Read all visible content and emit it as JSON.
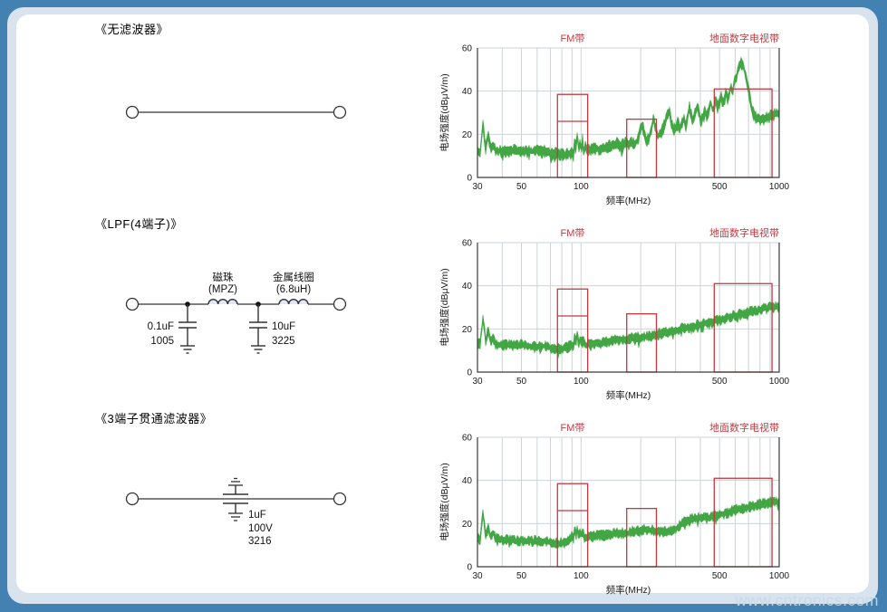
{
  "page": {
    "watermark": "www.cntronics.com",
    "colors": {
      "background_blue": "#4281b1",
      "frame_light": "#d8e3ee",
      "card_white": "#ffffff",
      "trace_green": "#41a643",
      "band_red": "#c23a40",
      "grid_gray": "#cdd3d8",
      "axis_dark": "#3b3b3b",
      "inductor_highlight": "#e2e7f5"
    }
  },
  "sections": [
    {
      "title": "《无滤波器》"
    },
    {
      "title": "《LPF(4端子)》",
      "components": {
        "cap1_value": "0.1uF",
        "cap1_size": "1005",
        "bead_name": "磁珠",
        "bead_part": "(MPZ)",
        "coil_name": "金属线圈",
        "coil_value": "(6.8uH)",
        "cap2_value": "10uF",
        "cap2_size": "3225"
      }
    },
    {
      "title": "《3端子贯通滤波器》",
      "components": {
        "cap_value": "1uF",
        "cap_voltage": "100V",
        "cap_size": "3216"
      }
    }
  ],
  "chart_data": [
    {
      "type": "area",
      "name": "no-filter-noise-spectrum",
      "xlabel": "频率(MHz)",
      "ylabel": "电场强度(dBμV/m)",
      "xscale": "log",
      "xlim": [
        30,
        1000
      ],
      "ylim": [
        0,
        60
      ],
      "x_ticks": [
        30,
        50,
        100,
        500,
        1000
      ],
      "y_ticks": [
        0,
        20,
        40,
        60
      ],
      "grid_x": [
        40,
        50,
        60,
        70,
        80,
        90,
        100,
        200,
        300,
        400,
        500,
        600,
        700,
        800,
        900
      ],
      "grid_y": [
        20,
        40,
        60
      ],
      "bands": [
        {
          "label": "FM带",
          "range_mhz": [
            76,
            108
          ],
          "limit_top": 38.5,
          "limit_inner": 26,
          "label_align": "center"
        },
        {
          "label": "",
          "range_mhz": [
            170,
            240
          ],
          "limit_top": 27
        },
        {
          "label": "地面数字电视带",
          "range_mhz": [
            470,
            920
          ],
          "limit_top": 41,
          "label_align": "right"
        }
      ],
      "trace_color": "#41a643",
      "band_color": "#c23a40",
      "noise_db": 2.4,
      "seed": 11,
      "envelope_points": [
        [
          30,
          13
        ],
        [
          31,
          12
        ],
        [
          32,
          25
        ],
        [
          33,
          13
        ],
        [
          34,
          19
        ],
        [
          35,
          13
        ],
        [
          36,
          16
        ],
        [
          37,
          12.5
        ],
        [
          39,
          12
        ],
        [
          42,
          12
        ],
        [
          46,
          12.5
        ],
        [
          50,
          12
        ],
        [
          55,
          12
        ],
        [
          60,
          12.5
        ],
        [
          65,
          12
        ],
        [
          70,
          11.5
        ],
        [
          74,
          11
        ],
        [
          78,
          10.5
        ],
        [
          82,
          10.5
        ],
        [
          86,
          11
        ],
        [
          90,
          11
        ],
        [
          92,
          12
        ],
        [
          93,
          19
        ],
        [
          94,
          12
        ],
        [
          96,
          21
        ],
        [
          97,
          12
        ],
        [
          99,
          17
        ],
        [
          100,
          12.5
        ],
        [
          102,
          18
        ],
        [
          103,
          12
        ],
        [
          105,
          15
        ],
        [
          107,
          12
        ],
        [
          110,
          13
        ],
        [
          115,
          13
        ],
        [
          120,
          13.5
        ],
        [
          126,
          13.5
        ],
        [
          133,
          14
        ],
        [
          140,
          14.5
        ],
        [
          148,
          15
        ],
        [
          152,
          17
        ],
        [
          156,
          14.5
        ],
        [
          162,
          15
        ],
        [
          168,
          16
        ],
        [
          172,
          15
        ],
        [
          178,
          17
        ],
        [
          183,
          15.5
        ],
        [
          190,
          16
        ],
        [
          197,
          20
        ],
        [
          203,
          25
        ],
        [
          208,
          21
        ],
        [
          214,
          17
        ],
        [
          220,
          18
        ],
        [
          226,
          22
        ],
        [
          232,
          27
        ],
        [
          238,
          23
        ],
        [
          245,
          19
        ],
        [
          252,
          20
        ],
        [
          258,
          22
        ],
        [
          265,
          25
        ],
        [
          272,
          29
        ],
        [
          278,
          31
        ],
        [
          285,
          26
        ],
        [
          292,
          22
        ],
        [
          300,
          23
        ],
        [
          308,
          26
        ],
        [
          315,
          23
        ],
        [
          322,
          24
        ],
        [
          330,
          27
        ],
        [
          338,
          24
        ],
        [
          345,
          28
        ],
        [
          352,
          33
        ],
        [
          358,
          30
        ],
        [
          365,
          26
        ],
        [
          372,
          28
        ],
        [
          380,
          31
        ],
        [
          388,
          33
        ],
        [
          395,
          29
        ],
        [
          403,
          26
        ],
        [
          412,
          28
        ],
        [
          422,
          31
        ],
        [
          432,
          28
        ],
        [
          442,
          31
        ],
        [
          452,
          35
        ],
        [
          460,
          31
        ],
        [
          470,
          33
        ],
        [
          480,
          36
        ],
        [
          490,
          32
        ],
        [
          500,
          35
        ],
        [
          510,
          38
        ],
        [
          520,
          34
        ],
        [
          530,
          37
        ],
        [
          540,
          40
        ],
        [
          550,
          36
        ],
        [
          560,
          39
        ],
        [
          570,
          42
        ],
        [
          580,
          39
        ],
        [
          590,
          43
        ],
        [
          600,
          45
        ],
        [
          610,
          47
        ],
        [
          620,
          50
        ],
        [
          632,
          52
        ],
        [
          645,
          53
        ],
        [
          655,
          52
        ],
        [
          665,
          50
        ],
        [
          675,
          48
        ],
        [
          685,
          45
        ],
        [
          695,
          42
        ],
        [
          705,
          39
        ],
        [
          715,
          36
        ],
        [
          725,
          33
        ],
        [
          735,
          31
        ],
        [
          745,
          29
        ],
        [
          755,
          28
        ],
        [
          770,
          27.5
        ],
        [
          790,
          27
        ],
        [
          810,
          27
        ],
        [
          835,
          27
        ],
        [
          860,
          27.5
        ],
        [
          885,
          28
        ],
        [
          910,
          28.5
        ],
        [
          940,
          29
        ],
        [
          970,
          29.5
        ],
        [
          1000,
          30
        ]
      ]
    },
    {
      "type": "area",
      "name": "lpf-4-terminal-noise-spectrum",
      "xlabel": "频率(MHz)",
      "ylabel": "电场强度(dBμV/m)",
      "xscale": "log",
      "xlim": [
        30,
        1000
      ],
      "ylim": [
        0,
        60
      ],
      "x_ticks": [
        30,
        50,
        100,
        500,
        1000
      ],
      "y_ticks": [
        0,
        20,
        40,
        60
      ],
      "grid_x": [
        40,
        50,
        60,
        70,
        80,
        90,
        100,
        200,
        300,
        400,
        500,
        600,
        700,
        800,
        900
      ],
      "grid_y": [
        20,
        40,
        60
      ],
      "bands": [
        {
          "label": "FM带",
          "range_mhz": [
            76,
            108
          ],
          "limit_top": 38.5,
          "limit_inner": 26,
          "label_align": "center"
        },
        {
          "label": "",
          "range_mhz": [
            170,
            240
          ],
          "limit_top": 27
        },
        {
          "label": "地面数字电视带",
          "range_mhz": [
            470,
            920
          ],
          "limit_top": 41,
          "label_align": "right"
        }
      ],
      "trace_color": "#41a643",
      "band_color": "#c23a40",
      "noise_db": 2.0,
      "seed": 22,
      "envelope_points": [
        [
          30,
          14
        ],
        [
          31,
          13
        ],
        [
          32,
          26
        ],
        [
          33,
          14
        ],
        [
          34,
          20
        ],
        [
          35,
          14
        ],
        [
          36,
          16
        ],
        [
          37,
          13
        ],
        [
          39,
          12.5
        ],
        [
          42,
          12.5
        ],
        [
          46,
          12.5
        ],
        [
          50,
          12.5
        ],
        [
          55,
          12
        ],
        [
          60,
          12
        ],
        [
          65,
          12
        ],
        [
          70,
          11.5
        ],
        [
          75,
          11
        ],
        [
          80,
          11
        ],
        [
          85,
          11.5
        ],
        [
          88,
          12
        ],
        [
          90,
          13
        ],
        [
          92,
          12
        ],
        [
          93,
          18
        ],
        [
          94,
          12
        ],
        [
          96,
          19
        ],
        [
          97,
          12.5
        ],
        [
          99,
          16
        ],
        [
          100,
          13
        ],
        [
          102,
          16
        ],
        [
          104,
          12.5
        ],
        [
          107,
          12.5
        ],
        [
          110,
          13
        ],
        [
          115,
          13
        ],
        [
          120,
          13.5
        ],
        [
          127,
          13.5
        ],
        [
          134,
          14
        ],
        [
          142,
          14.5
        ],
        [
          150,
          15
        ],
        [
          158,
          15
        ],
        [
          167,
          15
        ],
        [
          176,
          15.5
        ],
        [
          186,
          16
        ],
        [
          196,
          16
        ],
        [
          207,
          16.5
        ],
        [
          219,
          16.5
        ],
        [
          231,
          17
        ],
        [
          244,
          17.5
        ],
        [
          258,
          18
        ],
        [
          272,
          18.5
        ],
        [
          287,
          19
        ],
        [
          303,
          19.5
        ],
        [
          320,
          20
        ],
        [
          338,
          20.5
        ],
        [
          357,
          21
        ],
        [
          377,
          21.5
        ],
        [
          398,
          22
        ],
        [
          420,
          22.5
        ],
        [
          444,
          23
        ],
        [
          469,
          23.5
        ],
        [
          495,
          24
        ],
        [
          523,
          24.5
        ],
        [
          552,
          25.5
        ],
        [
          583,
          26
        ],
        [
          616,
          26.5
        ],
        [
          650,
          27
        ],
        [
          687,
          27.5
        ],
        [
          725,
          28
        ],
        [
          766,
          28.5
        ],
        [
          809,
          29
        ],
        [
          854,
          29.5
        ],
        [
          902,
          30
        ],
        [
          950,
          30
        ],
        [
          1000,
          30.5
        ]
      ]
    },
    {
      "type": "area",
      "name": "feedthrough-3-terminal-noise-spectrum",
      "xlabel": "频率(MHz)",
      "ylabel": "电场强度(dBμV/m)",
      "xscale": "log",
      "xlim": [
        30,
        1000
      ],
      "ylim": [
        0,
        60
      ],
      "x_ticks": [
        30,
        50,
        100,
        500,
        1000
      ],
      "y_ticks": [
        0,
        20,
        40,
        60
      ],
      "grid_x": [
        40,
        50,
        60,
        70,
        80,
        90,
        100,
        200,
        300,
        400,
        500,
        600,
        700,
        800,
        900
      ],
      "grid_y": [
        20,
        40,
        60
      ],
      "bands": [
        {
          "label": "FM带",
          "range_mhz": [
            76,
            108
          ],
          "limit_top": 38.5,
          "limit_inner": 26,
          "label_align": "center"
        },
        {
          "label": "",
          "range_mhz": [
            170,
            240
          ],
          "limit_top": 27
        },
        {
          "label": "地面数字电视带",
          "range_mhz": [
            470,
            920
          ],
          "limit_top": 41,
          "label_align": "right"
        }
      ],
      "trace_color": "#41a643",
      "band_color": "#c23a40",
      "noise_db": 2.0,
      "seed": 33,
      "envelope_points": [
        [
          30,
          13
        ],
        [
          31,
          12.5
        ],
        [
          32,
          26
        ],
        [
          33,
          13.5
        ],
        [
          34,
          19
        ],
        [
          35,
          13
        ],
        [
          36,
          16
        ],
        [
          37,
          13
        ],
        [
          39,
          12.5
        ],
        [
          42,
          12.5
        ],
        [
          46,
          12
        ],
        [
          50,
          12
        ],
        [
          55,
          12
        ],
        [
          60,
          12
        ],
        [
          65,
          12
        ],
        [
          70,
          11.5
        ],
        [
          75,
          11
        ],
        [
          80,
          11
        ],
        [
          84,
          11.5
        ],
        [
          88,
          13
        ],
        [
          90,
          14
        ],
        [
          92,
          13
        ],
        [
          93,
          20
        ],
        [
          94,
          13
        ],
        [
          96,
          19
        ],
        [
          97,
          13
        ],
        [
          99,
          17
        ],
        [
          100,
          14
        ],
        [
          102,
          16
        ],
        [
          104,
          13
        ],
        [
          107,
          13.5
        ],
        [
          110,
          14
        ],
        [
          115,
          14
        ],
        [
          120,
          14.5
        ],
        [
          127,
          14.5
        ],
        [
          134,
          15
        ],
        [
          142,
          15
        ],
        [
          150,
          15.5
        ],
        [
          158,
          15.5
        ],
        [
          167,
          15.5
        ],
        [
          176,
          16
        ],
        [
          186,
          16.5
        ],
        [
          196,
          16.5
        ],
        [
          207,
          17
        ],
        [
          219,
          17
        ],
        [
          231,
          17
        ],
        [
          244,
          16.5
        ],
        [
          258,
          16
        ],
        [
          272,
          16.5
        ],
        [
          287,
          17
        ],
        [
          303,
          18
        ],
        [
          320,
          19.5
        ],
        [
          338,
          21
        ],
        [
          357,
          22
        ],
        [
          377,
          22.5
        ],
        [
          398,
          22.5
        ],
        [
          420,
          23
        ],
        [
          444,
          23
        ],
        [
          469,
          23.5
        ],
        [
          495,
          24
        ],
        [
          523,
          24.5
        ],
        [
          552,
          25
        ],
        [
          583,
          26
        ],
        [
          616,
          26.5
        ],
        [
          650,
          27
        ],
        [
          687,
          27.5
        ],
        [
          725,
          28
        ],
        [
          766,
          28.5
        ],
        [
          809,
          29
        ],
        [
          854,
          29.5
        ],
        [
          902,
          30
        ],
        [
          950,
          30
        ],
        [
          1000,
          30
        ]
      ]
    }
  ]
}
